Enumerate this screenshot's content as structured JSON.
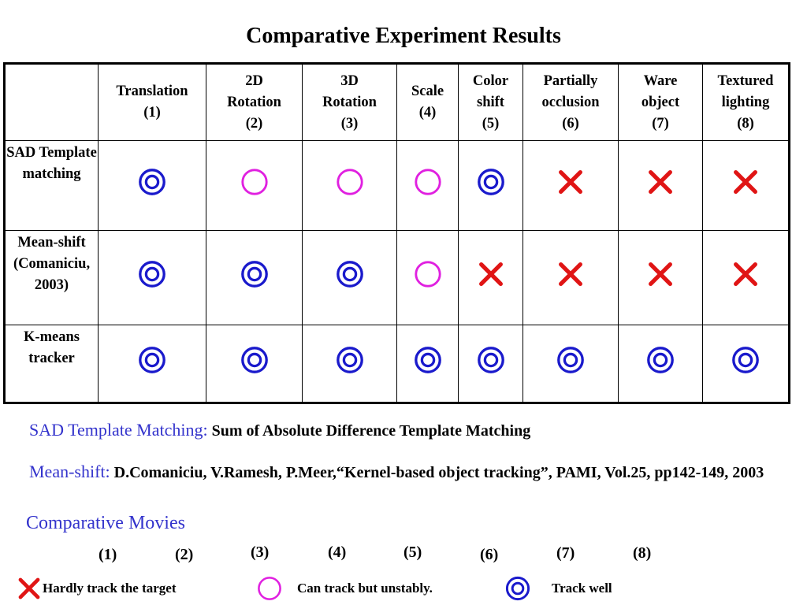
{
  "title": "Comparative Experiment Results",
  "table": {
    "headers": [
      "",
      "Translation\n(1)",
      "2D\nRotation\n(2)",
      "3D\nRotation\n(3)",
      "Scale\n(4)",
      "Color\nshift\n(5)",
      "Partially\nocclusion\n(6)",
      "Ware\nobject\n(7)",
      "Textured\nlighting\n(8)"
    ],
    "rows": [
      {
        "label": "SAD Template matching",
        "marks": [
          "double",
          "circle",
          "circle",
          "circle",
          "double",
          "cross",
          "cross",
          "cross"
        ]
      },
      {
        "label": "Mean-shift (Comaniciu, 2003)",
        "marks": [
          "double",
          "double",
          "double",
          "circle",
          "cross",
          "cross",
          "cross",
          "cross"
        ]
      },
      {
        "label": "K-means tracker",
        "marks": [
          "double",
          "double",
          "double",
          "double",
          "double",
          "double",
          "double",
          "double"
        ]
      }
    ]
  },
  "notes": {
    "sad_term": "SAD Template Matching:",
    "sad_text": "Sum of Absolute Difference Template Matching",
    "meanshift_term": "Mean-shift:",
    "meanshift_text": "D.Comaniciu, V.Ramesh, P.Meer,“Kernel-based object tracking”, PAMI, Vol.25, pp142-149, 2003"
  },
  "movies": {
    "title": "Comparative Movies",
    "links": [
      "(1)",
      "(2)",
      "(3)",
      "(4)",
      "(5)",
      "(6)",
      "(7)",
      "(8)"
    ]
  },
  "legend": {
    "cross": "Hardly track the target",
    "circle": "Can track but unstably.",
    "double": "Track well"
  },
  "colors": {
    "double": "#1a1acc",
    "circle": "#e020e0",
    "cross": "#e01515",
    "term": "#3333cc"
  }
}
